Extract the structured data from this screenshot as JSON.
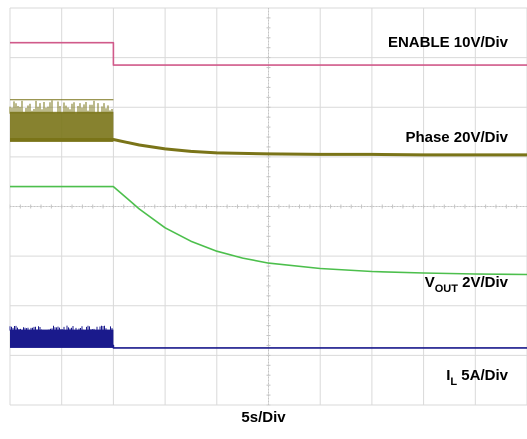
{
  "chart_data": {
    "type": "line",
    "title": "",
    "xlabel": "5s/Div",
    "ylabel": "",
    "x_divisions": 10,
    "y_divisions": 8,
    "grid": true,
    "ylim_divisions": [
      0,
      8
    ],
    "series": [
      {
        "key": "enable",
        "label_main": "ENABLE 10V/Div",
        "label_sub": "",
        "label_tail": "",
        "color": "#d05a8a",
        "x": [
          0,
          2,
          2,
          10
        ],
        "y": [
          7.3,
          7.3,
          6.85,
          6.85
        ]
      },
      {
        "key": "phase",
        "label_main": "Phase 20V/Div",
        "label_sub": "",
        "label_tail": "",
        "color": "#7a7418",
        "switching": {
          "x_start": 0,
          "x_end": 2,
          "y_low": 5.3,
          "y_high": 6.15
        },
        "x": [
          0,
          2,
          2.5,
          3,
          3.5,
          4,
          5,
          6,
          7,
          8,
          9,
          10
        ],
        "y": [
          5.35,
          5.35,
          5.24,
          5.16,
          5.11,
          5.08,
          5.06,
          5.05,
          5.05,
          5.04,
          5.04,
          5.04
        ]
      },
      {
        "key": "vout",
        "label_main": "V",
        "label_sub": "OUT",
        "label_tail": " 2V/Div",
        "color": "#4cbf4c",
        "x": [
          0,
          2,
          2.5,
          3,
          3.5,
          4,
          4.5,
          5,
          6,
          7,
          8,
          9,
          10
        ],
        "y": [
          4.4,
          4.4,
          3.95,
          3.57,
          3.3,
          3.1,
          2.96,
          2.86,
          2.75,
          2.69,
          2.66,
          2.64,
          2.63
        ]
      },
      {
        "key": "il",
        "label_main": "I",
        "label_sub": "L",
        "label_tail": " 5A/Div",
        "color": "#1a1a8c",
        "switching": {
          "x_start": 0,
          "x_end": 2,
          "y_low": 1.15,
          "y_high": 1.6
        },
        "x": [
          0,
          2,
          2,
          10
        ],
        "y": [
          1.2,
          1.2,
          1.15,
          1.15
        ]
      }
    ]
  }
}
